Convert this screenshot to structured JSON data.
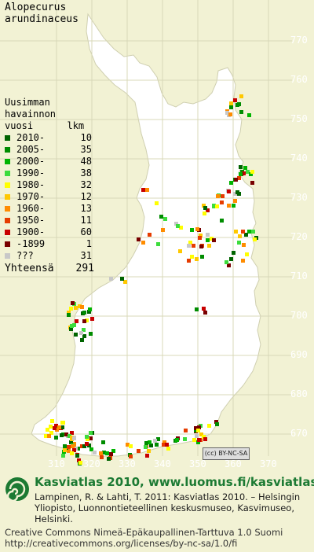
{
  "species": {
    "genus": "Alopecurus",
    "epithet": "arundinaceus"
  },
  "grid_labels_y": [
    "770",
    "760",
    "750",
    "740",
    "730",
    "720",
    "710",
    "700",
    "690",
    "680",
    "670"
  ],
  "grid_labels_x": [
    "310",
    "320",
    "330",
    "340",
    "350",
    "360",
    "370"
  ],
  "legend": {
    "heading": [
      "Uusimman",
      "havainnon",
      "vuosi      lkm"
    ],
    "rows": [
      {
        "label": "2010-",
        "count": "10",
        "color": "#006400"
      },
      {
        "label": "2005-",
        "count": "35",
        "color": "#008c00"
      },
      {
        "label": "2000-",
        "count": "48",
        "color": "#00b400"
      },
      {
        "label": "1990-",
        "count": "38",
        "color": "#3cdc3c"
      },
      {
        "label": "1980-",
        "count": "32",
        "color": "#ffff00"
      },
      {
        "label": "1970-",
        "count": "12",
        "color": "#ffc800"
      },
      {
        "label": "1960-",
        "count": "13",
        "color": "#ff8c00"
      },
      {
        "label": "1950-",
        "count": "11",
        "color": "#e63c00"
      },
      {
        "label": "1900-",
        "count": "60",
        "color": "#c80000"
      },
      {
        "label": "-1899",
        "count": "1",
        "color": "#780000"
      },
      {
        "label": "???",
        "count": "31",
        "color": "#c8c8c8"
      }
    ],
    "total_label": "Yhteensä",
    "total_count": "291"
  },
  "badge": "(cc) BY-NC-SA",
  "footer": {
    "site": "Kasviatlas 2010, www.luomus.fi/kasviatlas",
    "citation": "Lampinen, R. & Lahti, T. 2011: Kasviatlas 2010. – Helsingin Yliopisto, Luonnontieteellinen keskusmuseo, Kasvimuseo, Helsinki.",
    "license_1": "Creative Commons Nimeä-Epäkaupallinen-Tarttuva 1.0 Suomi",
    "license_2": "http://creativecommons.org/licenses/by-nc-sa/1.0/fi"
  },
  "colors": {
    "map_fill": "#ffffff",
    "background": "#f2f2d4",
    "grid_lines": "#d8d8b8",
    "footer_green": "#1c7a33"
  }
}
